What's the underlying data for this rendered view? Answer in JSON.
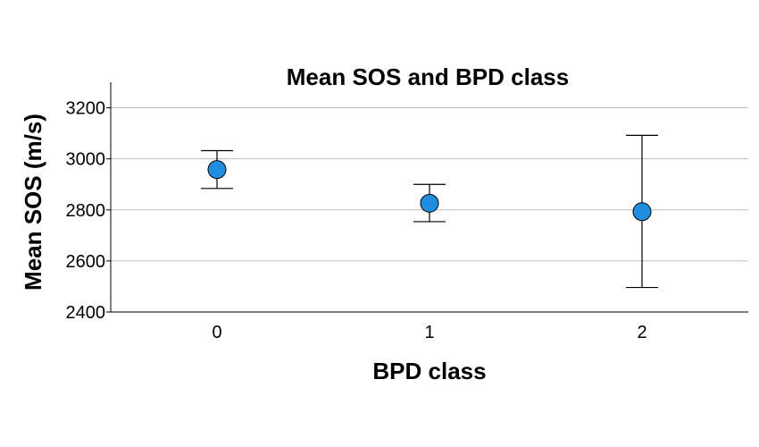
{
  "chart_data": {
    "type": "scatter",
    "title": "Mean SOS and BPD class",
    "xlabel": "BPD class",
    "ylabel": "Mean SOS (m/s)",
    "categories": [
      "0",
      "1",
      "2"
    ],
    "ylim": [
      2400,
      3300
    ],
    "yticks": [
      2400,
      2600,
      2800,
      3000,
      3200
    ],
    "grid": true,
    "legend": "none",
    "series": [
      {
        "values": [
          2958,
          2826,
          2793
        ],
        "error_low": [
          2884,
          2754,
          2496
        ],
        "error_high": [
          3032,
          2900,
          3092
        ],
        "color": "#1f8ee0"
      }
    ]
  }
}
